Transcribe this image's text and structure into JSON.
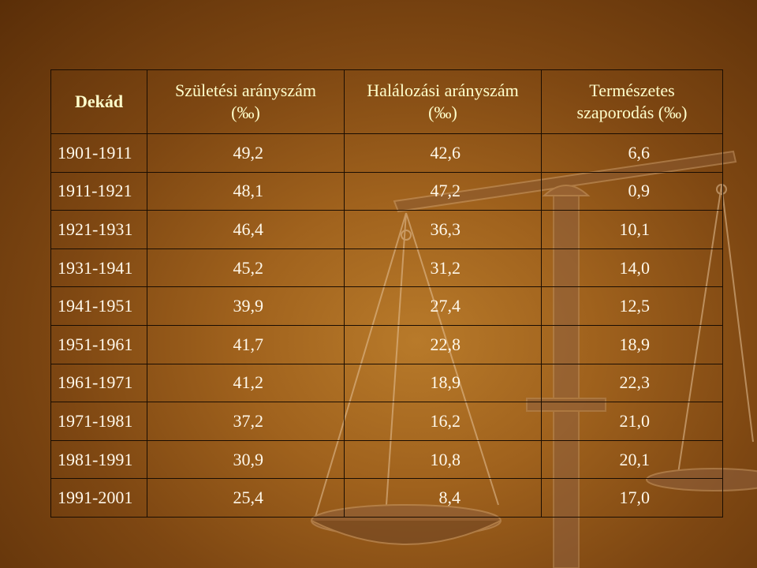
{
  "table": {
    "headers": {
      "decade": "Dekád",
      "birth_line1": "Születési arányszám",
      "birth_line2": "(‰)",
      "death_line1": "Halálozási arányszám",
      "death_line2": "(‰)",
      "natural_line1": "Természetes",
      "natural_line2": "szaporodás (‰)"
    },
    "rows": [
      {
        "decade": "1901-1911",
        "birth": "49,2",
        "death": "42,6",
        "natural": "6,6"
      },
      {
        "decade": "1911-1921",
        "birth": "48,1",
        "death": "47,2",
        "natural": "0,9"
      },
      {
        "decade": "1921-1931",
        "birth": "46,4",
        "death": "36,3",
        "natural": "10,1"
      },
      {
        "decade": "1931-1941",
        "birth": "45,2",
        "death": "31,2",
        "natural": "14,0"
      },
      {
        "decade": "1941-1951",
        "birth": "39,9",
        "death": "27,4",
        "natural": "12,5"
      },
      {
        "decade": "1951-1961",
        "birth": "41,7",
        "death": "22,8",
        "natural": "18,9"
      },
      {
        "decade": "1961-1971",
        "birth": "41,2",
        "death": "18,9",
        "natural": "22,3"
      },
      {
        "decade": "1971-1981",
        "birth": "37,2",
        "death": "16,2",
        "natural": "21,0"
      },
      {
        "decade": "1981-1991",
        "birth": "30,9",
        "death": "10,8",
        "natural": "20,1"
      },
      {
        "decade": "1991-2001",
        "birth": "25,4",
        "death": "8,4",
        "natural": "17,0"
      }
    ]
  },
  "colors": {
    "background_center": "#b87a2a",
    "background_edge": "#5a2e08",
    "header_text": "#ffffcc",
    "cell_text": "#fff8ea",
    "grid_lines": "#1a0d02"
  },
  "background_picture": "balance-scale"
}
